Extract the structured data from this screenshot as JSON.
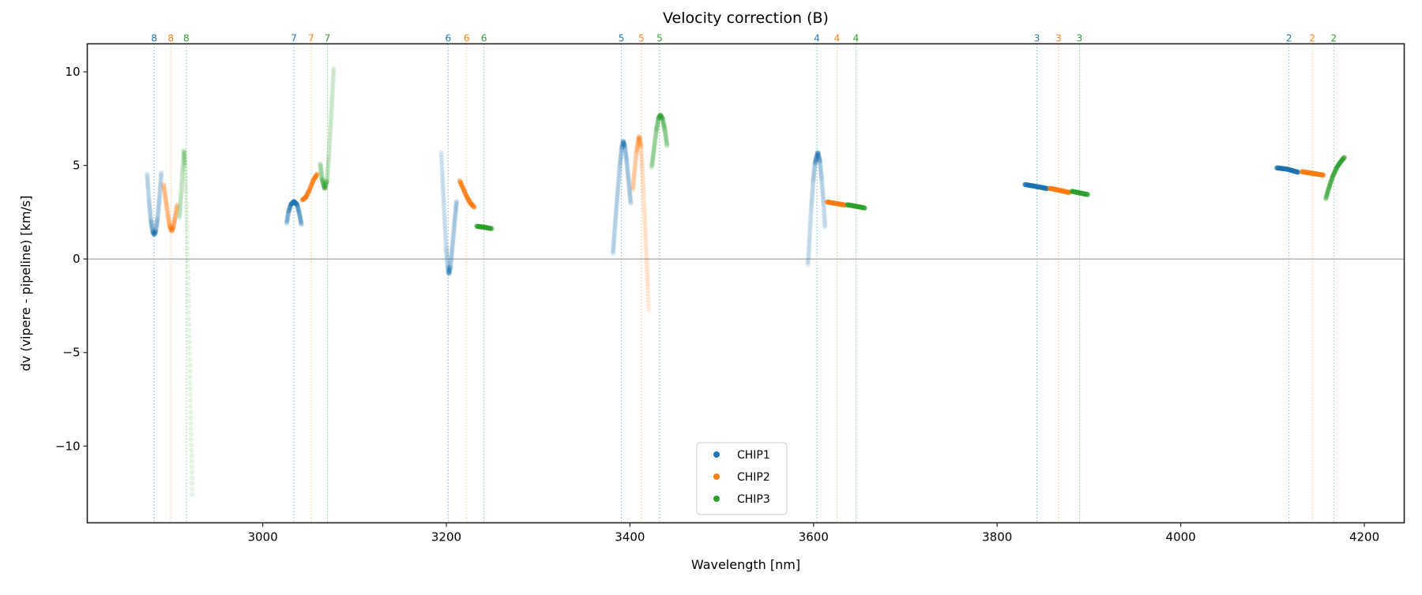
{
  "chart_data": {
    "type": "scatter",
    "title": "Velocity correction (B)",
    "xlabel": "Wavelength [nm]",
    "ylabel": "dv (vipere - pipeline) [km/s]",
    "xlim": [
      2808.9,
      4243.4
    ],
    "ylim": [
      -14.1,
      11.5
    ],
    "xticks": [
      3000,
      3200,
      3400,
      3600,
      3800,
      4000,
      4200
    ],
    "yticks": [
      -10,
      -5,
      0,
      5,
      10
    ],
    "ytick_labels": [
      "−10",
      "−5",
      "0",
      "5",
      "10"
    ],
    "grid": false,
    "zero_line": true,
    "legend": {
      "placement": "lower-center",
      "entries": [
        "CHIP1",
        "CHIP2",
        "CHIP3"
      ]
    },
    "colors": {
      "CHIP1": "#1f77b4",
      "CHIP2": "#ff7f0e",
      "CHIP3": "#2ca02c"
    },
    "order_markers": [
      {
        "order": "8",
        "wavelengths": [
          2881.7,
          2899.8,
          2916.7
        ]
      },
      {
        "order": "7",
        "wavelengths": [
          3034.0,
          3052.7,
          3070.5
        ]
      },
      {
        "order": "6",
        "wavelengths": [
          3202.0,
          3222.1,
          3241.0
        ]
      },
      {
        "order": "5",
        "wavelengths": [
          3390.7,
          3412.5,
          3432.3
        ]
      },
      {
        "order": "4",
        "wavelengths": [
          3603.7,
          3625.5,
          3646.2
        ]
      },
      {
        "order": "3",
        "wavelengths": [
          3843.3,
          3866.9,
          3889.7
        ]
      },
      {
        "order": "2",
        "wavelengths": [
          4117.9,
          4143.4,
          4166.7
        ]
      }
    ],
    "series": [
      {
        "name": "CHIP1",
        "segments": [
          [
            [
              2874.0,
              4.55
            ],
            [
              2876,
              3.2
            ],
            [
              2878,
              2.1
            ],
            [
              2880,
              1.5
            ],
            [
              2881.7,
              1.3
            ],
            [
              2883.5,
              1.5
            ],
            [
              2885.5,
              2.2
            ],
            [
              2887.5,
              3.3
            ],
            [
              2889.7,
              4.7
            ]
          ],
          [
            [
              3026,
              1.9
            ],
            [
              3028,
              2.5
            ],
            [
              3030.5,
              2.9
            ],
            [
              3034,
              3.08
            ],
            [
              3037.5,
              2.9
            ],
            [
              3040,
              2.4
            ],
            [
              3042.3,
              1.8
            ]
          ],
          [
            [
              3194.4,
              5.7
            ],
            [
              3195.5,
              4.6
            ],
            [
              3196.8,
              3.4
            ],
            [
              3198.2,
              2.0
            ],
            [
              3199.8,
              0.6
            ],
            [
              3201.5,
              -0.4
            ],
            [
              3202.8,
              -0.8
            ],
            [
              3204.5,
              -0.4
            ],
            [
              3206.5,
              0.6
            ],
            [
              3208.5,
              1.7
            ],
            [
              3210,
              2.5
            ],
            [
              3211.4,
              3.15
            ]
          ],
          [
            [
              3381.5,
              0.3
            ],
            [
              3383,
              1.3
            ],
            [
              3385,
              2.6
            ],
            [
              3387,
              3.8
            ],
            [
              3389,
              5.0
            ],
            [
              3391,
              5.9
            ],
            [
              3392.7,
              6.3
            ],
            [
              3394.5,
              6.0
            ],
            [
              3396.5,
              5.2
            ],
            [
              3398.5,
              4.2
            ],
            [
              3401,
              2.9
            ]
          ],
          [
            [
              3593.9,
              -0.3
            ],
            [
              3595.5,
              1.0
            ],
            [
              3597.5,
              2.7
            ],
            [
              3599.5,
              4.1
            ],
            [
              3601.5,
              5.1
            ],
            [
              3604.7,
              5.7
            ],
            [
              3607,
              5.2
            ],
            [
              3609,
              4.2
            ],
            [
              3611,
              2.9
            ],
            [
              3612.6,
              1.6
            ]
          ],
          [
            [
              3830,
              3.98
            ],
            [
              3842,
              3.88
            ],
            [
              3855,
              3.76
            ]
          ],
          [
            [
              4104.4,
              4.87
            ],
            [
              4116,
              4.8
            ],
            [
              4128.2,
              4.63
            ]
          ]
        ]
      },
      {
        "name": "CHIP2",
        "segments": [
          [
            [
              2892,
              4.0
            ],
            [
              2894,
              3.3
            ],
            [
              2896.5,
              2.4
            ],
            [
              2898.5,
              1.8
            ],
            [
              2900.6,
              1.5
            ],
            [
              2902.5,
              1.7
            ],
            [
              2904.5,
              2.2
            ],
            [
              2906.9,
              2.95
            ]
          ],
          [
            [
              3043,
              3.15
            ],
            [
              3047,
              3.3
            ],
            [
              3051,
              3.7
            ],
            [
              3055,
              4.2
            ],
            [
              3059.6,
              4.55
            ]
          ],
          [
            [
              3214.3,
              4.2
            ],
            [
              3218,
              3.8
            ],
            [
              3222,
              3.35
            ],
            [
              3226,
              3.0
            ],
            [
              3230.7,
              2.75
            ]
          ],
          [
            [
              3403,
              3.7
            ],
            [
              3405,
              4.7
            ],
            [
              3407,
              5.7
            ],
            [
              3409.9,
              6.55
            ],
            [
              3412,
              6.0
            ],
            [
              3413.5,
              4.8
            ],
            [
              3415,
              3.3
            ],
            [
              3416.5,
              1.7
            ],
            [
              3418,
              0.1
            ],
            [
              3419.5,
              -1.5
            ],
            [
              3420.5,
              -2.9
            ]
          ],
          [
            [
              3614.6,
              3.05
            ],
            [
              3624,
              2.97
            ],
            [
              3634.4,
              2.88
            ]
          ],
          [
            [
              3857,
              3.78
            ],
            [
              3868,
              3.67
            ],
            [
              3879,
              3.55
            ]
          ],
          [
            [
              4131.6,
              4.67
            ],
            [
              4143,
              4.58
            ],
            [
              4155.7,
              4.48
            ]
          ]
        ]
      },
      {
        "name": "CHIP3",
        "segments": [
          [
            [
              2909.2,
              2.2
            ],
            [
              2911,
              3.4
            ],
            [
              2912.5,
              4.6
            ],
            [
              2914.2,
              5.8
            ],
            [
              2915.5,
              5.0
            ],
            [
              2916.5,
              3.5
            ],
            [
              2917.5,
              1.5
            ],
            [
              2918.5,
              -1
            ],
            [
              2919.5,
              -3.5
            ],
            [
              2920.5,
              -6
            ],
            [
              2921.5,
              -8.5
            ],
            [
              2922.5,
              -10.8
            ],
            [
              2923.4,
              -12.9
            ]
          ],
          [
            [
              3062.6,
              5.1
            ],
            [
              3064.5,
              4.3
            ],
            [
              3067.5,
              3.75
            ],
            [
              3070,
              4.2
            ],
            [
              3072,
              5.5
            ],
            [
              3074,
              7.2
            ],
            [
              3075.8,
              8.8
            ],
            [
              3077.4,
              10.3
            ]
          ],
          [
            [
              3233,
              1.75
            ],
            [
              3241,
              1.7
            ],
            [
              3249.6,
              1.62
            ]
          ],
          [
            [
              3423.7,
              4.9
            ],
            [
              3426,
              5.8
            ],
            [
              3428.5,
              6.8
            ],
            [
              3431,
              7.5
            ],
            [
              3433.1,
              7.7
            ],
            [
              3435.5,
              7.5
            ],
            [
              3438,
              6.9
            ],
            [
              3440.6,
              6.0
            ]
          ],
          [
            [
              3636.4,
              2.9
            ],
            [
              3646,
              2.82
            ],
            [
              3656.1,
              2.72
            ]
          ],
          [
            [
              3881,
              3.62
            ],
            [
              3890,
              3.53
            ],
            [
              3899,
              3.44
            ]
          ],
          [
            [
              4157.8,
              3.2
            ],
            [
              4161,
              3.75
            ],
            [
              4165,
              4.35
            ],
            [
              4170,
              4.9
            ],
            [
              4175,
              5.25
            ],
            [
              4178.5,
              5.45
            ]
          ]
        ]
      }
    ]
  }
}
